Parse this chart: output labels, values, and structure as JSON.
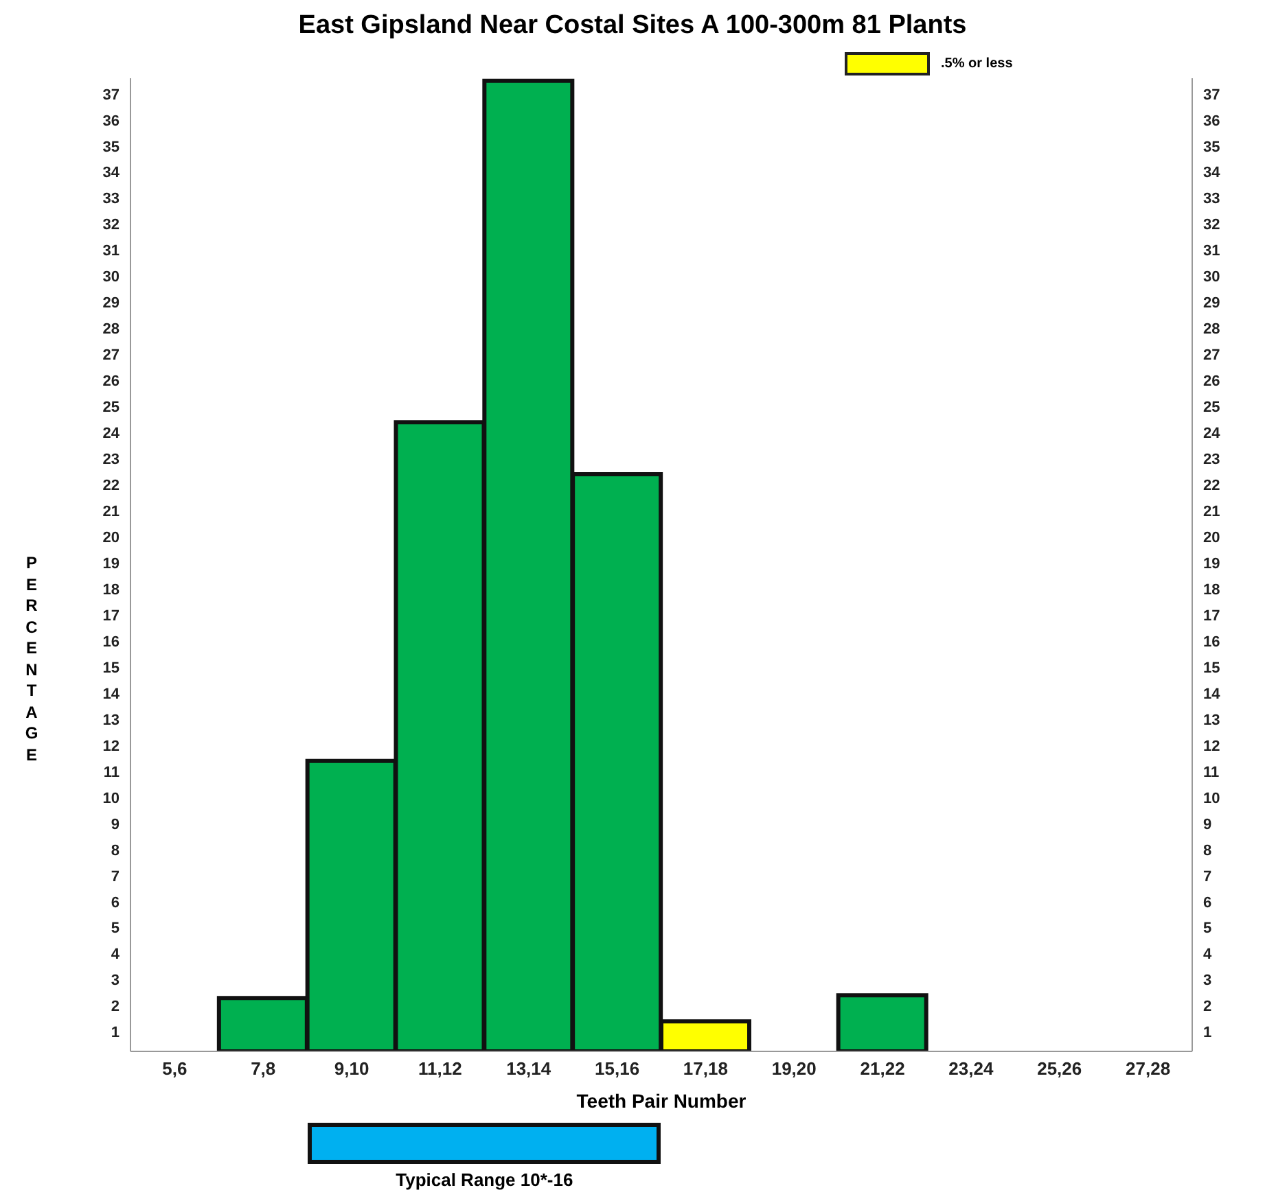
{
  "chart_data": {
    "type": "bar",
    "title": "East Gipsland Near Costal Sites A 100-300m 81 Plants",
    "xlabel": "Teeth Pair Number",
    "ylabel": "PERCENTAGE",
    "categories": [
      "5,6",
      "7,8",
      "9,10",
      "11,12",
      "13,14",
      "15,16",
      "17,18",
      "19,20",
      "21,22",
      "23,24",
      "25,26",
      "27,28"
    ],
    "series": [
      {
        "color": "#00b050",
        "values": [
          null,
          2.3,
          11.4,
          24.4,
          37.5,
          22.4,
          null,
          null,
          2.4,
          null,
          null,
          null
        ]
      },
      {
        "name": ".5% or less",
        "color": "#ffff00",
        "values": [
          null,
          null,
          null,
          null,
          null,
          null,
          1.4,
          null,
          null,
          null,
          null,
          null
        ]
      }
    ],
    "stacked": true,
    "ylim": [
      0.25,
      37.6
    ],
    "yticks": [
      1,
      2,
      3,
      4,
      5,
      6,
      7,
      8,
      9,
      10,
      11,
      12,
      13,
      14,
      15,
      16,
      17,
      18,
      19,
      20,
      21,
      22,
      23,
      24,
      25,
      26,
      27,
      28,
      29,
      30,
      31,
      32,
      33,
      34,
      35,
      36,
      37
    ],
    "y2lim": [
      0.25,
      37.6
    ],
    "y2ticks": [
      1,
      2,
      3,
      4,
      5,
      6,
      7,
      8,
      9,
      10,
      11,
      12,
      13,
      14,
      15,
      16,
      17,
      18,
      19,
      20,
      21,
      22,
      23,
      24,
      25,
      26,
      27,
      28,
      29,
      30,
      31,
      32,
      33,
      34,
      35,
      36,
      37
    ],
    "annotations": [
      "Typical Range 10*-16"
    ],
    "legend": "top right",
    "grid": false
  }
}
